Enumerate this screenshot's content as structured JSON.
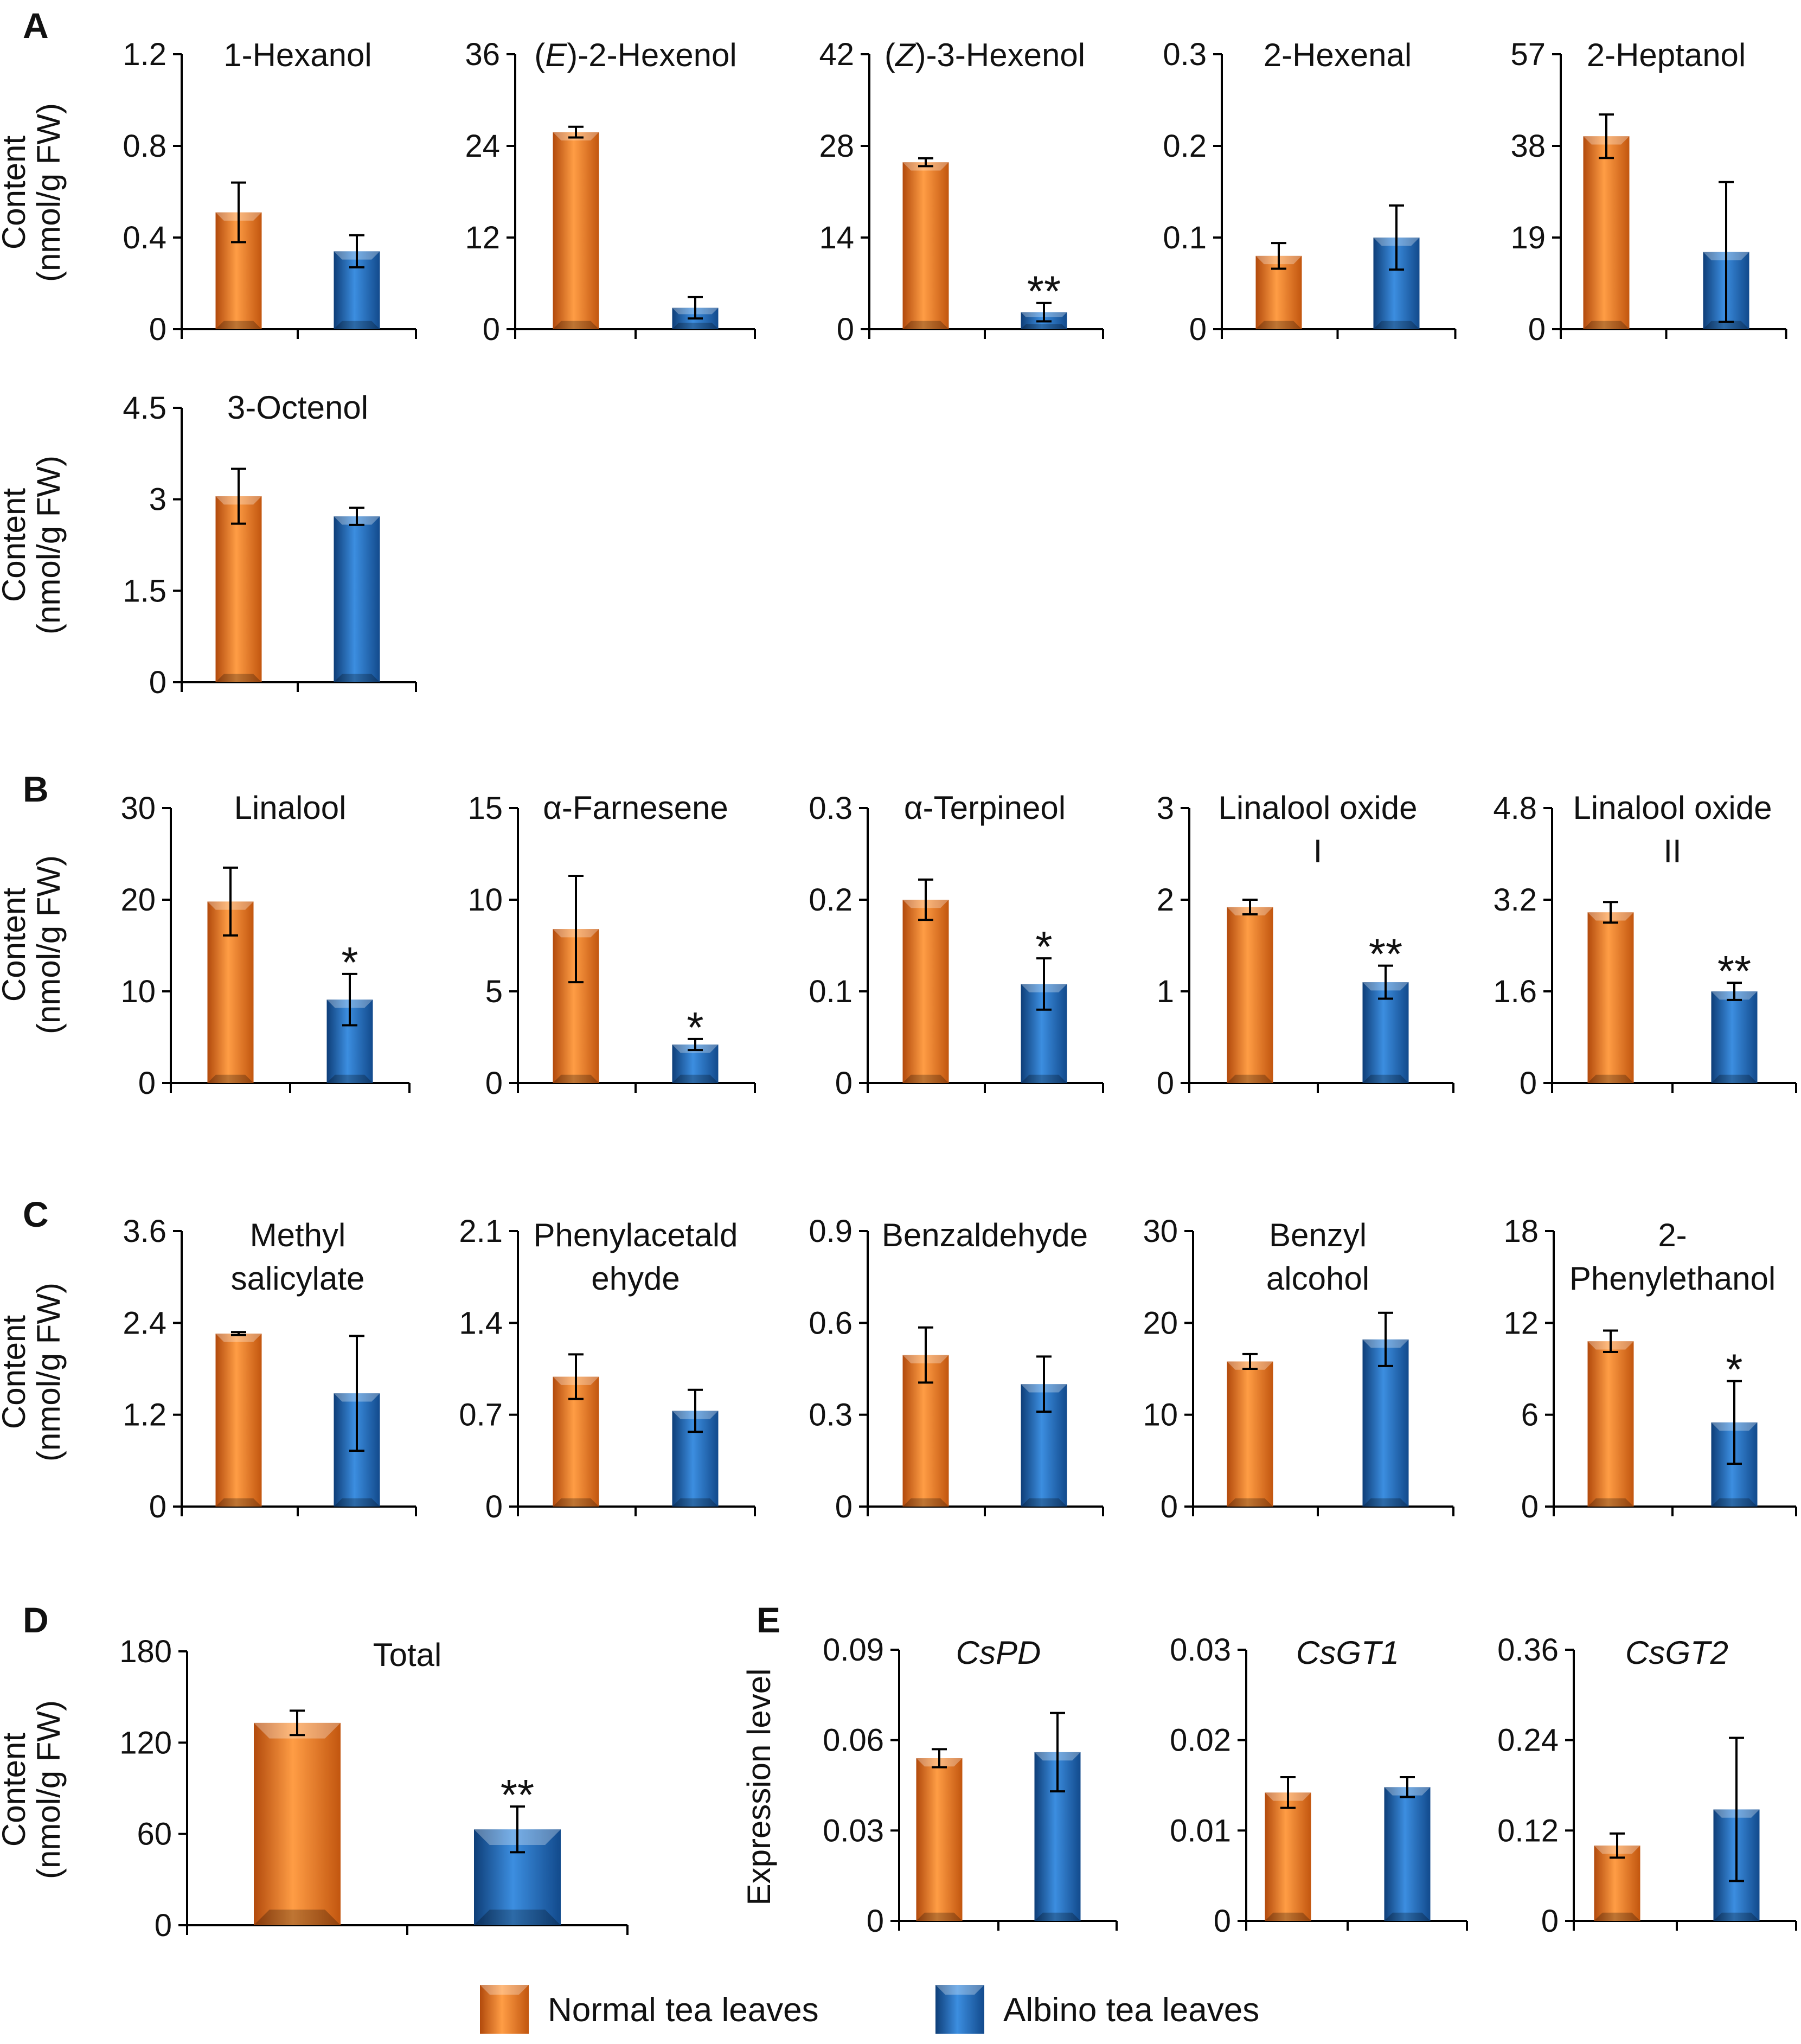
{
  "series": [
    {
      "name": "Normal tea leaves",
      "color": "#F0761E"
    },
    {
      "name": "Albino tea leaves",
      "color": "#1E6AB8"
    }
  ],
  "y_label_content": [
    "Content",
    "(nmol/g FW)"
  ],
  "y_label_expression": "Expression level",
  "panels": [
    "A",
    "B",
    "C",
    "D",
    "E"
  ],
  "chart_data": [
    {
      "type": "bar",
      "panel": "A",
      "title": [
        "1-Hexanol"
      ],
      "ylim": [
        0,
        1.2
      ],
      "ticks": [
        "0",
        "0.4",
        "0.8",
        "1.2"
      ],
      "values": [
        0.51,
        0.34
      ],
      "errors": [
        0.13,
        0.07
      ],
      "significance": [
        "",
        ""
      ]
    },
    {
      "type": "bar",
      "panel": "A",
      "title": [
        "(E)-2-Hexenol"
      ],
      "italic_part": "E",
      "ylim": [
        0,
        36
      ],
      "ticks": [
        "0",
        "12",
        "24",
        "36"
      ],
      "values": [
        25.8,
        2.8
      ],
      "errors": [
        0.7,
        1.4
      ],
      "significance": [
        "",
        ""
      ]
    },
    {
      "type": "bar",
      "panel": "A",
      "title": [
        "(Z)-3-Hexenol"
      ],
      "italic_part": "Z",
      "ylim": [
        0,
        42
      ],
      "ticks": [
        "0",
        "14",
        "28",
        "42"
      ],
      "values": [
        25.5,
        2.6
      ],
      "errors": [
        0.6,
        1.4
      ],
      "significance": [
        "",
        "**"
      ]
    },
    {
      "type": "bar",
      "panel": "A",
      "title": [
        "2-Hexenal"
      ],
      "ylim": [
        0,
        0.3
      ],
      "ticks": [
        "0",
        "0.1",
        "0.2",
        "0.3"
      ],
      "values": [
        0.08,
        0.1
      ],
      "errors": [
        0.014,
        0.035
      ],
      "significance": [
        "",
        ""
      ]
    },
    {
      "type": "bar",
      "panel": "A",
      "title": [
        "2-Heptanol"
      ],
      "ylim": [
        0,
        57
      ],
      "ticks": [
        "0",
        "19",
        "38",
        "57"
      ],
      "values": [
        40,
        16
      ],
      "errors": [
        4.5,
        14.5
      ],
      "significance": [
        "",
        ""
      ]
    },
    {
      "type": "bar",
      "panel": "A",
      "title": [
        "3-Octenol"
      ],
      "ylim": [
        0,
        4.5
      ],
      "ticks": [
        "0",
        "1.5",
        "3",
        "4.5"
      ],
      "values": [
        3.05,
        2.72
      ],
      "errors": [
        0.45,
        0.14
      ],
      "significance": [
        "",
        ""
      ]
    },
    {
      "type": "bar",
      "panel": "B",
      "title": [
        "Linalool"
      ],
      "ylim": [
        0,
        30
      ],
      "ticks": [
        "0",
        "10",
        "20",
        "30"
      ],
      "values": [
        19.8,
        9.1
      ],
      "errors": [
        3.7,
        2.8
      ],
      "significance": [
        "",
        "*"
      ]
    },
    {
      "type": "bar",
      "panel": "B",
      "title": [
        "α-Farnesene"
      ],
      "ylim": [
        0,
        15
      ],
      "ticks": [
        "0",
        "5",
        "10",
        "15"
      ],
      "values": [
        8.4,
        2.1
      ],
      "errors": [
        2.9,
        0.3
      ],
      "significance": [
        "",
        "*"
      ]
    },
    {
      "type": "bar",
      "panel": "B",
      "title": [
        "α-Terpineol"
      ],
      "ylim": [
        0,
        0.3
      ],
      "ticks": [
        "0",
        "0.1",
        "0.2",
        "0.3"
      ],
      "values": [
        0.2,
        0.108
      ],
      "errors": [
        0.022,
        0.028
      ],
      "significance": [
        "",
        "*"
      ]
    },
    {
      "type": "bar",
      "panel": "B",
      "title": [
        "Linalool oxide",
        "I"
      ],
      "ylim": [
        0,
        3
      ],
      "ticks": [
        "0",
        "1",
        "2",
        "3"
      ],
      "values": [
        1.92,
        1.1
      ],
      "errors": [
        0.08,
        0.18
      ],
      "significance": [
        "",
        "**"
      ]
    },
    {
      "type": "bar",
      "panel": "B",
      "title": [
        "Linalool oxide",
        "II"
      ],
      "ylim": [
        0,
        4.8
      ],
      "ticks": [
        "0",
        "1.6",
        "3.2",
        "4.8"
      ],
      "values": [
        2.98,
        1.6
      ],
      "errors": [
        0.18,
        0.15
      ],
      "significance": [
        "",
        "**"
      ]
    },
    {
      "type": "bar",
      "panel": "C",
      "title": [
        "Methyl",
        "salicylate"
      ],
      "ylim": [
        0,
        3.6
      ],
      "ticks": [
        "0",
        "1.2",
        "2.4",
        "3.6"
      ],
      "values": [
        2.26,
        1.48
      ],
      "errors": [
        0.02,
        0.75
      ],
      "significance": [
        "",
        ""
      ]
    },
    {
      "type": "bar",
      "panel": "C",
      "title": [
        "Phenylacetald",
        "ehyde"
      ],
      "ylim": [
        0,
        2.1
      ],
      "ticks": [
        "0",
        "0.7",
        "1.4",
        "2.1"
      ],
      "values": [
        0.99,
        0.73
      ],
      "errors": [
        0.17,
        0.16
      ],
      "significance": [
        "",
        ""
      ]
    },
    {
      "type": "bar",
      "panel": "C",
      "title": [
        "Benzaldehyde"
      ],
      "ylim": [
        0,
        0.9
      ],
      "ticks": [
        "0",
        "0.3",
        "0.6",
        "0.9"
      ],
      "values": [
        0.495,
        0.4
      ],
      "errors": [
        0.09,
        0.09
      ],
      "significance": [
        "",
        ""
      ]
    },
    {
      "type": "bar",
      "panel": "C",
      "title": [
        "Benzyl",
        "alcohol"
      ],
      "ylim": [
        0,
        30
      ],
      "ticks": [
        "0",
        "10",
        "20",
        "30"
      ],
      "values": [
        15.8,
        18.2
      ],
      "errors": [
        0.8,
        2.9
      ],
      "significance": [
        "",
        ""
      ]
    },
    {
      "type": "bar",
      "panel": "C",
      "title": [
        "2-",
        "Phenylethanol"
      ],
      "ylim": [
        0,
        18
      ],
      "ticks": [
        "0",
        "6",
        "12",
        "18"
      ],
      "values": [
        10.8,
        5.5
      ],
      "errors": [
        0.7,
        2.7
      ],
      "significance": [
        "",
        "*"
      ]
    },
    {
      "type": "bar",
      "panel": "D",
      "title": [
        "Total"
      ],
      "ylim": [
        0,
        180
      ],
      "ticks": [
        "0",
        "60",
        "120",
        "180"
      ],
      "values": [
        133,
        63
      ],
      "errors": [
        8,
        15
      ],
      "significance": [
        "",
        "**"
      ]
    },
    {
      "type": "bar",
      "panel": "E",
      "title": [
        "CsPD"
      ],
      "italic_title": true,
      "ylim": [
        0,
        0.09
      ],
      "ticks": [
        "0",
        "0.03",
        "0.06",
        "0.09"
      ],
      "values": [
        0.054,
        0.056
      ],
      "errors": [
        0.003,
        0.013
      ],
      "significance": [
        "",
        ""
      ]
    },
    {
      "type": "bar",
      "panel": "E",
      "title": [
        "CsGT1"
      ],
      "italic_title": true,
      "ylim": [
        0,
        0.03
      ],
      "ticks": [
        "0",
        "0.01",
        "0.02",
        "0.03"
      ],
      "values": [
        0.0142,
        0.0148
      ],
      "errors": [
        0.0017,
        0.0011
      ],
      "significance": [
        "",
        ""
      ]
    },
    {
      "type": "bar",
      "panel": "E",
      "title": [
        "CsGT2"
      ],
      "italic_title": true,
      "ylim": [
        0,
        0.36
      ],
      "ticks": [
        "0",
        "0.12",
        "0.24",
        "0.36"
      ],
      "values": [
        0.1,
        0.148
      ],
      "errors": [
        0.016,
        0.095
      ],
      "significance": [
        "",
        ""
      ]
    }
  ]
}
